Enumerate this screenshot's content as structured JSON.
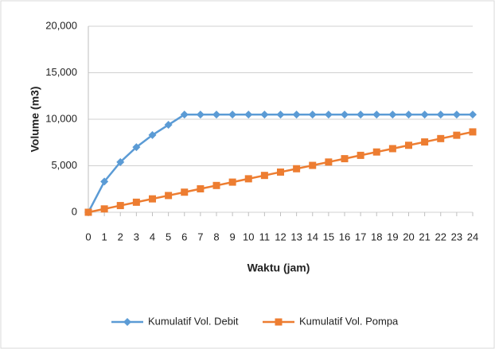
{
  "chart_data": {
    "type": "line",
    "x_label": "Waktu (jam)",
    "y_label": "Volume (m3)",
    "x": [
      0,
      1,
      2,
      3,
      4,
      5,
      6,
      7,
      8,
      9,
      10,
      11,
      12,
      13,
      14,
      15,
      16,
      17,
      18,
      19,
      20,
      21,
      22,
      23,
      24
    ],
    "xlim": [
      0,
      24
    ],
    "xticks": [
      0,
      1,
      2,
      3,
      4,
      5,
      6,
      7,
      8,
      9,
      10,
      11,
      12,
      13,
      14,
      15,
      16,
      17,
      18,
      19,
      20,
      21,
      22,
      23,
      24
    ],
    "ylim": [
      0,
      20000
    ],
    "yticks": [
      0,
      {
        "value": 5000,
        "label": "5,000"
      },
      {
        "value": 10000,
        "label": "10,000"
      },
      {
        "value": 15000,
        "label": "15,000"
      },
      {
        "value": 20000,
        "label": "20,000"
      }
    ],
    "grid": true,
    "legend": "bottom",
    "series": [
      {
        "name": "Kumulatif Vol. Debit",
        "color": "#5b9bd5",
        "marker": "diamond",
        "values": [
          0,
          3300,
          5400,
          7000,
          8300,
          9400,
          10500,
          10500,
          10500,
          10500,
          10500,
          10500,
          10500,
          10500,
          10500,
          10500,
          10500,
          10500,
          10500,
          10500,
          10500,
          10500,
          10500,
          10500,
          10500
        ]
      },
      {
        "name": "Kumulatif Vol. Pompa",
        "color": "#ed7d31",
        "marker": "square",
        "values": [
          0,
          360,
          720,
          1080,
          1440,
          1800,
          2160,
          2520,
          2880,
          3240,
          3600,
          3960,
          4320,
          4680,
          5040,
          5400,
          5760,
          6120,
          6480,
          6840,
          7200,
          7560,
          7920,
          8280,
          8640
        ]
      }
    ]
  }
}
